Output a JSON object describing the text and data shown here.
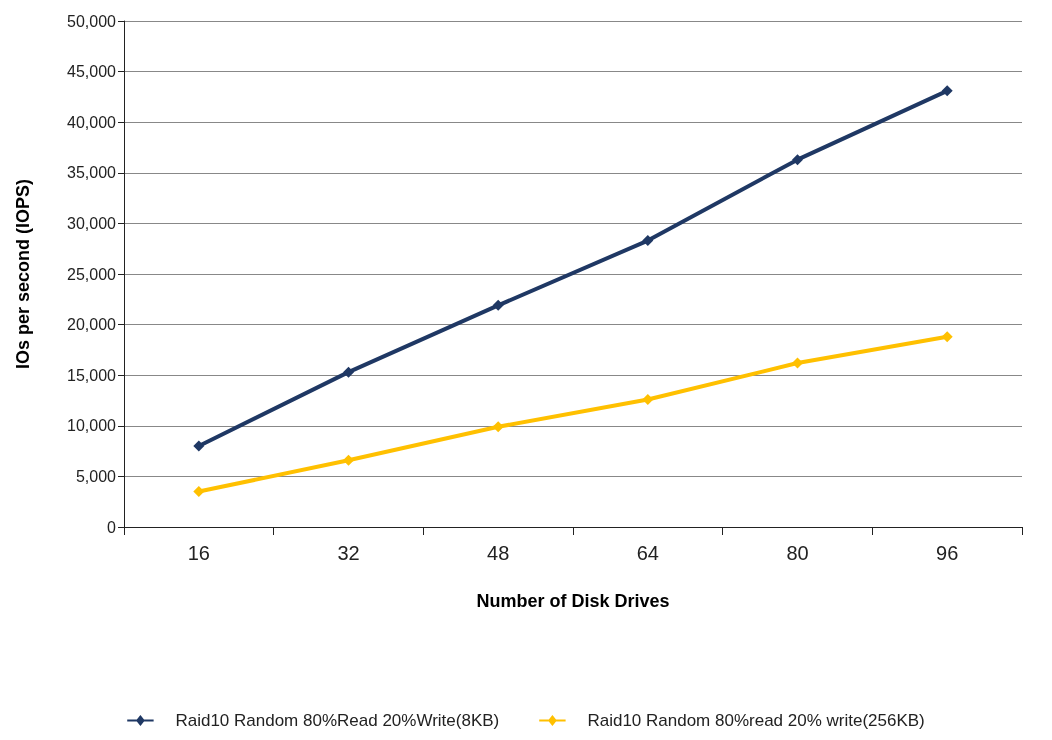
{
  "chart_data": {
    "type": "line",
    "xlabel": "Number of Disk Drives",
    "ylabel": "IOs per second (IOPS)",
    "categories": [
      "16",
      "32",
      "48",
      "64",
      "80",
      "96"
    ],
    "series": [
      {
        "name": "Raid10 Random 80%Read 20%Write(8KB)",
        "color": "#1f3864",
        "values": [
          8000,
          15300,
          21900,
          28300,
          36300,
          43100
        ]
      },
      {
        "name": "Raid10 Random 80%read 20% write(256KB)",
        "color": "#ffc000",
        "values": [
          3500,
          6600,
          9900,
          12600,
          16200,
          18800
        ]
      }
    ],
    "ylim": [
      0,
      50000
    ],
    "yticks": [
      0,
      {
        "value": 5000,
        "label": "5,000"
      },
      {
        "value": 10000,
        "label": "10,000"
      },
      {
        "value": 15000,
        "label": "15,000"
      },
      {
        "value": 20000,
        "label": "20,000"
      },
      {
        "value": 25000,
        "label": "25,000"
      },
      {
        "value": 30000,
        "label": "30,000"
      },
      {
        "value": 35000,
        "label": "35,000"
      },
      {
        "value": 40000,
        "label": "40,000"
      },
      {
        "value": 45000,
        "label": "45,000"
      },
      {
        "value": 50000,
        "label": "50,000"
      }
    ],
    "grid": "y",
    "legend": "bottom",
    "marker": "diamond",
    "line_style": "solid"
  }
}
